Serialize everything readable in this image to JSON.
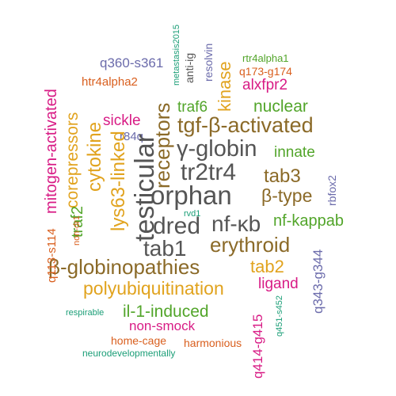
{
  "words": [
    {
      "text": "orphan",
      "color": "#555555"
    },
    {
      "text": "testicular",
      "color": "#555555"
    },
    {
      "text": "β-globinopathies",
      "color": "#8b6a28"
    },
    {
      "text": "tgf-β-activated",
      "color": "#8b6a28"
    },
    {
      "text": "γ-globin",
      "color": "#555555"
    },
    {
      "text": "tr2tr4",
      "color": "#555555"
    },
    {
      "text": "dred",
      "color": "#555555"
    },
    {
      "text": "nf-κb",
      "color": "#555555"
    },
    {
      "text": "tab1",
      "color": "#555555"
    },
    {
      "text": "receptors",
      "color": "#8b6a28"
    },
    {
      "text": "erythroid",
      "color": "#8b6a28"
    },
    {
      "text": "polyubiquitination",
      "color": "#e1a31e"
    },
    {
      "text": "lys63-linked",
      "color": "#e1a31e"
    },
    {
      "text": "cytokine",
      "color": "#e1a31e"
    },
    {
      "text": "β-type",
      "color": "#8b6a28"
    },
    {
      "text": "tab3",
      "color": "#8b6a28"
    },
    {
      "text": "tab2",
      "color": "#e1a31e"
    },
    {
      "text": "mitogen-activated",
      "color": "#d81b85"
    },
    {
      "text": "corepressors",
      "color": "#e1a31e"
    },
    {
      "text": "kinase",
      "color": "#e1a31e"
    },
    {
      "text": "il-1-induced",
      "color": "#52a52a"
    },
    {
      "text": "nf-kappab",
      "color": "#52a52a"
    },
    {
      "text": "innate",
      "color": "#52a52a"
    },
    {
      "text": "nuclear",
      "color": "#52a52a"
    },
    {
      "text": "traf2",
      "color": "#52a52a"
    },
    {
      "text": "traf6",
      "color": "#52a52a"
    },
    {
      "text": "ligand",
      "color": "#d81b85"
    },
    {
      "text": "sickle",
      "color": "#d81b85"
    },
    {
      "text": "alxfpr2",
      "color": "#d81b85"
    },
    {
      "text": "q414-g415",
      "color": "#d81b85"
    },
    {
      "text": "q343-g344",
      "color": "#6b6bab"
    },
    {
      "text": "non-smock",
      "color": "#d81b85"
    },
    {
      "text": "q360-s361",
      "color": "#6b6bab"
    },
    {
      "text": "q113-s114",
      "color": "#d95f1e"
    },
    {
      "text": "q173-g174",
      "color": "#d95f1e"
    },
    {
      "text": "htr4alpha2",
      "color": "#d95f1e"
    },
    {
      "text": "home-cage",
      "color": "#d95f1e"
    },
    {
      "text": "harmonious",
      "color": "#d95f1e"
    },
    {
      "text": "rbfox2",
      "color": "#6b6bab"
    },
    {
      "text": "resolvin",
      "color": "#6b6bab"
    },
    {
      "text": "anti-ig",
      "color": "#555555"
    },
    {
      "text": "r84q",
      "color": "#6b6bab"
    },
    {
      "text": "rtr4alpha1",
      "color": "#52a52a"
    },
    {
      "text": "metastasis2015",
      "color": "#1b9e77"
    },
    {
      "text": "non-dr1",
      "color": "#d95f1e"
    },
    {
      "text": "rvd1",
      "color": "#1b9e77"
    },
    {
      "text": "respirable",
      "color": "#1b9e77"
    },
    {
      "text": "q451-s452",
      "color": "#1b9e77"
    },
    {
      "text": "neurodevelopmentally",
      "color": "#1b9e77"
    }
  ]
}
